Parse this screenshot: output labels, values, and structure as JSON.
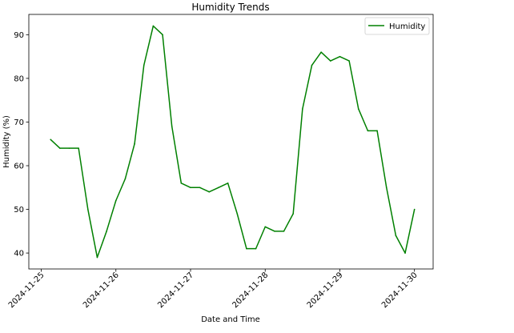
{
  "chart_data": {
    "type": "line",
    "title": "Humidity Trends",
    "xlabel": "Date and Time",
    "ylabel": "Humidity (%)",
    "x_ticks": [
      "2024-11-25",
      "2024-11-26",
      "2024-11-27",
      "2024-11-28",
      "2024-11-29",
      "2024-11-30"
    ],
    "y_ticks": [
      40,
      50,
      60,
      70,
      80,
      90
    ],
    "xlim": [
      "2024-11-24 20:00",
      "2024-11-30 06:00"
    ],
    "ylim": [
      36.35,
      94.65
    ],
    "grid": false,
    "legend_position": "top-right",
    "series": [
      {
        "name": "Humidity",
        "color": "#008000",
        "x": [
          "2024-11-25 03:00",
          "2024-11-25 06:00",
          "2024-11-25 09:00",
          "2024-11-25 12:00",
          "2024-11-25 15:00",
          "2024-11-25 18:00",
          "2024-11-25 21:00",
          "2024-11-26 00:00",
          "2024-11-26 03:00",
          "2024-11-26 06:00",
          "2024-11-26 09:00",
          "2024-11-26 12:00",
          "2024-11-26 15:00",
          "2024-11-26 18:00",
          "2024-11-26 21:00",
          "2024-11-27 00:00",
          "2024-11-27 03:00",
          "2024-11-27 06:00",
          "2024-11-27 09:00",
          "2024-11-27 12:00",
          "2024-11-27 15:00",
          "2024-11-27 18:00",
          "2024-11-27 21:00",
          "2024-11-28 00:00",
          "2024-11-28 03:00",
          "2024-11-28 06:00",
          "2024-11-28 09:00",
          "2024-11-28 12:00",
          "2024-11-28 15:00",
          "2024-11-28 18:00",
          "2024-11-28 21:00",
          "2024-11-29 00:00",
          "2024-11-29 03:00",
          "2024-11-29 06:00",
          "2024-11-29 09:00",
          "2024-11-29 12:00",
          "2024-11-29 15:00",
          "2024-11-29 18:00",
          "2024-11-29 21:00",
          "2024-11-30 00:00"
        ],
        "y": [
          66,
          64,
          64,
          64,
          50,
          39,
          45,
          52,
          57,
          65,
          83,
          92,
          90,
          69,
          56,
          55,
          55,
          54,
          55,
          56,
          49,
          41,
          41,
          46,
          45,
          45,
          49,
          73,
          83,
          86,
          84,
          85,
          84,
          73,
          68,
          68,
          55,
          44,
          40,
          50
        ]
      }
    ]
  }
}
